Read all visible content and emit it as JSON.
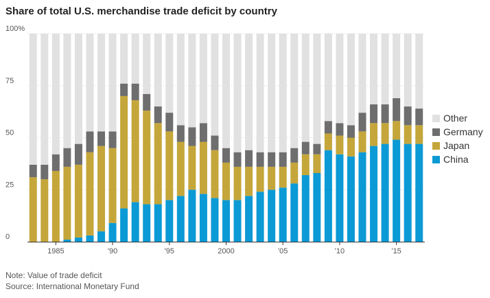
{
  "chart_data": {
    "type": "bar",
    "stacked": true,
    "title": "Share of total U.S. merchandise trade deficit by country",
    "xlabel": "",
    "ylabel": "",
    "ylim": [
      0,
      100
    ],
    "yticks": [
      {
        "value": 0,
        "label": "0"
      },
      {
        "value": 25,
        "label": "25"
      },
      {
        "value": 50,
        "label": "50"
      },
      {
        "value": 75,
        "label": "75"
      },
      {
        "value": 100,
        "label": "100%"
      }
    ],
    "grid": true,
    "legend_position": "right",
    "categories": [
      1983,
      1984,
      1985,
      1986,
      1987,
      1988,
      1989,
      1990,
      1991,
      1992,
      1993,
      1994,
      1995,
      1996,
      1997,
      1998,
      1999,
      2000,
      2001,
      2002,
      2003,
      2004,
      2005,
      2006,
      2007,
      2008,
      2009,
      2010,
      2011,
      2012,
      2013,
      2014,
      2015,
      2016,
      2017
    ],
    "xticks": [
      {
        "year": 1985,
        "label": "1985"
      },
      {
        "year": 1990,
        "label": "'90"
      },
      {
        "year": 1995,
        "label": "'95"
      },
      {
        "year": 2000,
        "label": "2000"
      },
      {
        "year": 2005,
        "label": "'05"
      },
      {
        "year": 2010,
        "label": "'10"
      },
      {
        "year": 2015,
        "label": "'15"
      }
    ],
    "series": [
      {
        "name": "China",
        "color": "#0b9ad5",
        "values": [
          0,
          0,
          0,
          1,
          2,
          3,
          5,
          9,
          16,
          19,
          18,
          18,
          20,
          22,
          25,
          23,
          21,
          20,
          20,
          22,
          24,
          25,
          26,
          28,
          32,
          33,
          44,
          42,
          41,
          43,
          46,
          47,
          49,
          47,
          47
        ]
      },
      {
        "name": "Japan",
        "color": "#c5a63a",
        "values": [
          31,
          30,
          34,
          35,
          35,
          40,
          41,
          36,
          54,
          49,
          45,
          39,
          33,
          26,
          21,
          25,
          23,
          18,
          16,
          14,
          12,
          11,
          10,
          10,
          10,
          9,
          8,
          9,
          9,
          10,
          11,
          10,
          9,
          9,
          9
        ]
      },
      {
        "name": "Germany",
        "color": "#6e6e6e",
        "values": [
          6,
          7,
          8,
          9,
          10,
          10,
          7,
          8,
          6,
          8,
          8,
          8,
          9,
          8,
          9,
          9,
          7,
          7,
          7,
          8,
          7,
          7,
          7,
          7,
          6,
          5,
          6,
          6,
          6,
          9,
          9,
          9,
          11,
          9,
          8
        ]
      },
      {
        "name": "Other",
        "color": "#e1e1e1",
        "values": [
          63,
          63,
          58,
          55,
          53,
          47,
          47,
          47,
          24,
          24,
          29,
          35,
          38,
          44,
          45,
          43,
          49,
          55,
          57,
          56,
          57,
          57,
          57,
          55,
          52,
          53,
          42,
          43,
          44,
          38,
          34,
          34,
          31,
          35,
          36
        ]
      }
    ],
    "legend_order": [
      "Other",
      "Germany",
      "Japan",
      "China"
    ],
    "grid_color": "#d6d6d6",
    "axis_color": "#333333"
  },
  "notes": {
    "note": "Note: Value of trade deficit",
    "source": "Source: International Monetary Fund"
  }
}
